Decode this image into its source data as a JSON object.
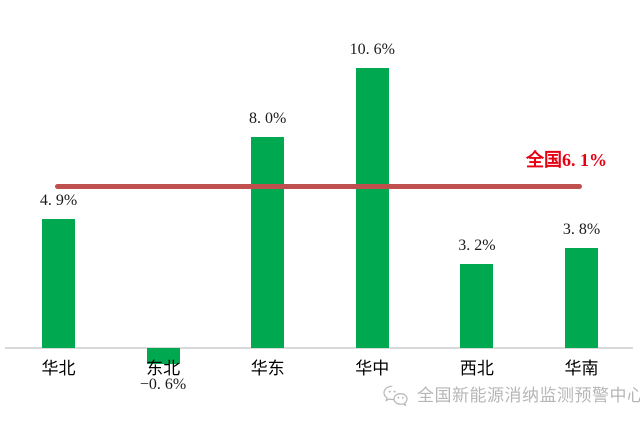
{
  "chart_data": {
    "type": "bar",
    "title": "",
    "xlabel": "",
    "ylabel": "",
    "categories": [
      "华北",
      "东北",
      "华东",
      "华中",
      "西北",
      "华南"
    ],
    "values": [
      4.9,
      -0.6,
      8.0,
      10.6,
      3.2,
      3.8
    ],
    "value_labels": [
      "4. 9%",
      "−0. 6%",
      "8. 0%",
      "10. 6%",
      "3. 2%",
      "3. 8%"
    ],
    "bar_color": "#00A84F",
    "ylim": [
      -1,
      11.5
    ],
    "grid": false,
    "legend": false,
    "axis_line_color": "#D9D9D9",
    "reference_line": {
      "value": 6.1,
      "label": "全国6. 1%",
      "line_color": "#C0504D",
      "label_color": "#E60012"
    }
  },
  "watermark": {
    "icon": "wechat-icon",
    "text": "全国新能源消纳监测预警中心",
    "color": "#B6B6B6"
  }
}
